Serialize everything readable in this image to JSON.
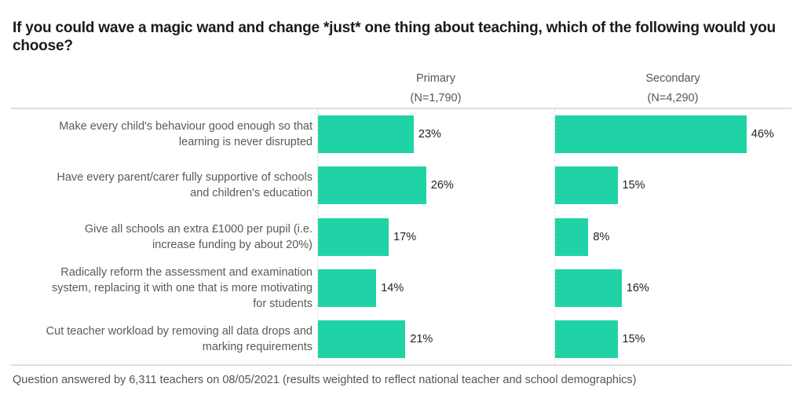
{
  "chart_data": {
    "type": "bar",
    "orientation": "horizontal",
    "title": "If you could wave a magic wand and change *just* one thing about teaching, which of the following would you choose?",
    "categories": [
      "Make every child's behaviour good enough so that learning is never disrupted",
      "Have every parent/carer fully supportive of schools and children's education",
      "Give all schools an extra £1000 per pupil (i.e. increase funding by about 20%)",
      "Radically reform the assessment and examination system, replacing it with one that is more motivating for students",
      "Cut teacher workload by removing all data drops and marking requirements"
    ],
    "category_lines": [
      [
        "Make every child's behaviour good enough so that",
        "learning is never disrupted"
      ],
      [
        "Have every parent/carer fully supportive of schools",
        "and children's education"
      ],
      [
        "Give all schools an extra £1000 per pupil (i.e.",
        "increase funding by about 20%)"
      ],
      [
        "Radically reform the assessment and examination",
        "system, replacing it with one that is more motivating",
        "for students"
      ],
      [
        "Cut teacher workload by removing all data drops and",
        "marking requirements"
      ]
    ],
    "series": [
      {
        "name": "Primary",
        "subtitle": "(N=1,790)",
        "values": [
          23,
          26,
          17,
          14,
          21
        ],
        "labels": [
          "23%",
          "26%",
          "17%",
          "14%",
          "21%"
        ]
      },
      {
        "name": "Secondary",
        "subtitle": "(N=4,290)",
        "values": [
          46,
          15,
          8,
          16,
          15
        ],
        "labels": [
          "46%",
          "15%",
          "8%",
          "16%",
          "15%"
        ]
      }
    ],
    "unit": "%",
    "xlim": [
      0,
      50
    ],
    "bar_color": "#20d3a7",
    "grid": false,
    "legend": "none",
    "footnote": "Question answered by 6,311 teachers on 08/05/2021 (results weighted to reflect national teacher and school demographics)"
  }
}
